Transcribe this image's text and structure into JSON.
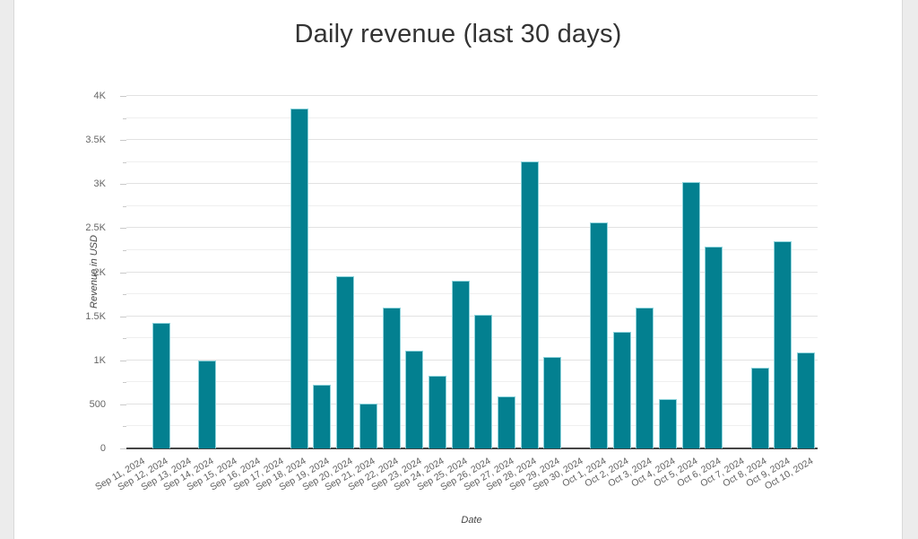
{
  "page": {
    "background_color": "#ececec",
    "card_background_color": "#ffffff",
    "card_border_color": "#d9d9d9"
  },
  "chart_data": {
    "type": "bar",
    "title": "Daily revenue (last 30 days)",
    "xlabel": "Date",
    "ylabel": "Revenue in USD",
    "legend": "none",
    "grid": "on",
    "bar_color": "#038090",
    "bar_border_color": "#8fd4dc",
    "ylim": [
      0,
      4000
    ],
    "y_major_step": 500,
    "y_minor_step": 250,
    "y_tick_labels": [
      "0",
      "500",
      "1K",
      "1.5K",
      "2K",
      "2.5K",
      "3K",
      "3.5K",
      "4K"
    ],
    "x_tick_rotation": -30,
    "categories": [
      "Sep 11, 2024",
      "Sep 12, 2024",
      "Sep 13, 2024",
      "Sep 14, 2024",
      "Sep 15, 2024",
      "Sep 16, 2024",
      "Sep 17, 2024",
      "Sep 18, 2024",
      "Sep 19, 2024",
      "Sep 20, 2024",
      "Sep 21, 2024",
      "Sep 22, 2024",
      "Sep 23, 2024",
      "Sep 24, 2024",
      "Sep 25, 2024",
      "Sep 26, 2024",
      "Sep 27, 2024",
      "Sep 28, 2024",
      "Sep 29, 2024",
      "Sep 30, 2024",
      "Oct 1, 2024",
      "Oct 2, 2024",
      "Oct 3, 2024",
      "Oct 4, 2024",
      "Oct 5, 2024",
      "Oct 6, 2024",
      "Oct 7, 2024",
      "Oct 8, 2024",
      "Oct 9, 2024",
      "Oct 10, 2024"
    ],
    "values": [
      0,
      1430,
      0,
      1000,
      0,
      0,
      0,
      3860,
      720,
      1950,
      510,
      1600,
      1110,
      820,
      1900,
      1515,
      590,
      3260,
      1040,
      0,
      2560,
      1320,
      1600,
      555,
      3020,
      2290,
      0,
      920,
      2350,
      1090
    ]
  }
}
